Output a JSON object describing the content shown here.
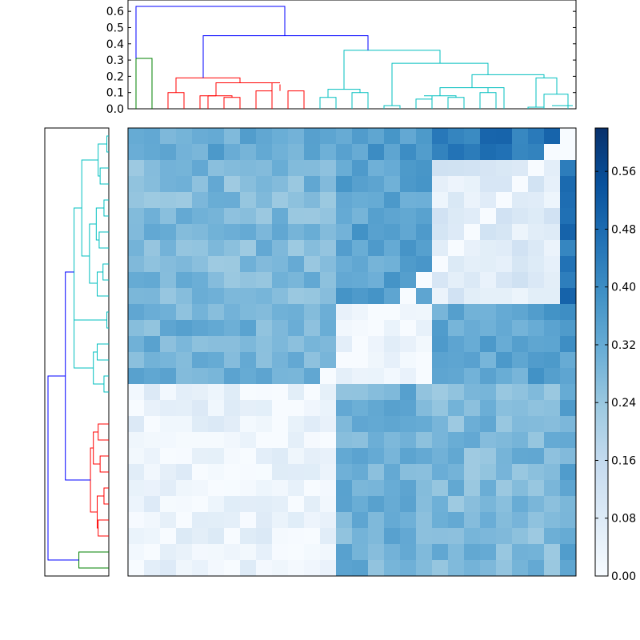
{
  "chart_data": [
    {
      "type": "dendrogram",
      "orientation": "top",
      "ylim": [
        0,
        0.65
      ],
      "yticks": [
        "0.0",
        "0.1",
        "0.2",
        "0.3",
        "0.4",
        "0.5",
        "0.6"
      ],
      "leaf_count": 28,
      "links": [
        {
          "x1": 1.5,
          "x2": 3.5,
          "h1": 0.1,
          "h2": 0.1,
          "h": 0.1,
          "color": "#ff0000"
        },
        {
          "x1": 4.5,
          "x2": 6.5,
          "h1": 0.08,
          "h2": 0.08,
          "h": 0.08,
          "color": "#ff0000"
        },
        {
          "x1": 6.5,
          "x2": 7.5,
          "h1": 0.07,
          "h2": 0.07,
          "h": 0.07,
          "color": "#ff0000"
        },
        {
          "x1": 8.5,
          "x2": 10.5,
          "h1": 0.16,
          "h2": 0.16,
          "h": 0.16,
          "color": "#ff0000"
        },
        {
          "x1": 5.5,
          "x2": 9.5,
          "h1": 0.16,
          "h2": 0.16,
          "h": 0.16,
          "color": "#ff0000"
        },
        {
          "x1": 2.5,
          "x2": 7.5,
          "h1": 0.19,
          "h2": 0.19,
          "h": 0.19,
          "color": "#ff0000"
        },
        {
          "x1": 11.5,
          "x2": 13.5,
          "h1": 0.12,
          "h2": 0.12,
          "h": 0.12,
          "color": "#00bfbf"
        },
        {
          "x1": 17.5,
          "x2": 19.5,
          "h1": 0.08,
          "h2": 0.08,
          "h": 0.08,
          "color": "#00bfbf"
        },
        {
          "x1": 19.5,
          "x2": 21.5,
          "h1": 0.06,
          "h2": 0.06,
          "h": 0.06,
          "color": "#00bfbf"
        },
        {
          "x1": 18.5,
          "x2": 20.5,
          "h1": 0.13,
          "h2": 0.13,
          "h": 0.13,
          "color": "#00bfbf"
        },
        {
          "x1": 22.5,
          "x2": 24.5,
          "h1": 0.1,
          "h2": 0.1,
          "h": 0.1,
          "color": "#00bfbf"
        },
        {
          "x1": 20.5,
          "x2": 23.5,
          "h1": 0.2,
          "h2": 0.2,
          "h": 0.2,
          "color": "#00bfbf"
        },
        {
          "x1": 25.5,
          "x2": 27.5,
          "h1": 0.09,
          "h2": 0.09,
          "h": 0.09,
          "color": "#00bfbf"
        },
        {
          "x1": 23.5,
          "x2": 26.5,
          "h1": 0.21,
          "h2": 0.21,
          "h": 0.21,
          "color": "#00bfbf"
        },
        {
          "x1": 14.5,
          "x2": 25.0,
          "h1": 0.28,
          "h2": 0.28,
          "h": 0.28,
          "color": "#00bfbf"
        },
        {
          "x1": 12.5,
          "x2": 19.5,
          "h1": 0.36,
          "h2": 0.36,
          "h": 0.36,
          "color": "#00bfbf"
        },
        {
          "x1": 5.0,
          "x2": 15.5,
          "h1": 0.45,
          "h2": 0.45,
          "h": 0.45,
          "color": "#0000ff"
        },
        {
          "x1": 0.5,
          "x2": 10.0,
          "h1": 0.63,
          "h2": 0.63,
          "h": 0.63,
          "color": "#0000ff"
        }
      ],
      "segments": [
        {
          "x": 0.5,
          "y0": 0.0,
          "y1": 0.31,
          "color": "#008000"
        },
        {
          "x": 1.0,
          "y0": 0.0,
          "y1": 0.31,
          "color": "#008000"
        },
        {
          "x": 0.0,
          "y0": 0.31,
          "y1": 0.31,
          "color": "#008000"
        }
      ]
    },
    {
      "type": "dendrogram",
      "orientation": "left",
      "leaf_count": 28
    },
    {
      "type": "heatmap",
      "rows": 28,
      "cols": 28,
      "colormap": "Blues",
      "vmin": 0.0,
      "vmax": 0.62,
      "blocks": [
        {
          "r0": 0,
          "r1": 12,
          "c0": 0,
          "c1": 28,
          "base": 0.26
        },
        {
          "r0": 13,
          "r1": 18,
          "c0": 0,
          "c1": 28,
          "base": 0.32
        },
        {
          "r0": 18,
          "r1": 25,
          "c0": 0,
          "c1": 28,
          "base": 0.28
        },
        {
          "r0": 26,
          "r1": 28,
          "c0": 0,
          "c1": 28,
          "base": 0.45
        }
      ],
      "colorbar": {
        "ticks": [
          "0.00",
          "0.08",
          "0.16",
          "0.24",
          "0.32",
          "0.40",
          "0.48",
          "0.56"
        ],
        "tick_values": [
          0.0,
          0.08,
          0.16,
          0.24,
          0.32,
          0.4,
          0.48,
          0.56
        ]
      }
    }
  ],
  "colors": {
    "red": "#ff0000",
    "cyan": "#00bfbf",
    "blue": "#0000ff",
    "green": "#008000"
  }
}
